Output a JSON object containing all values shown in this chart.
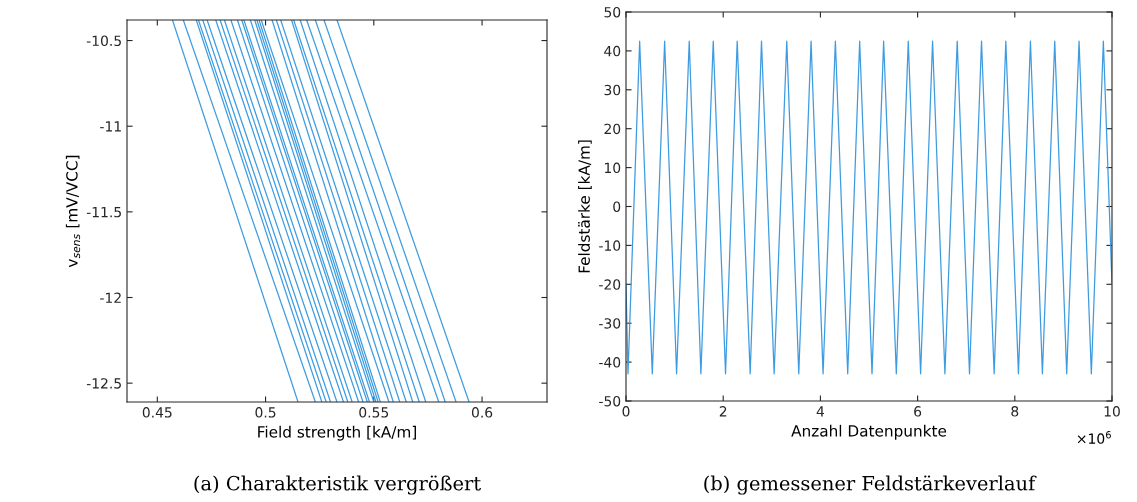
{
  "chart_data": [
    {
      "type": "line",
      "xlabel": "Field strength [kA/m]",
      "ylabel": "v$_{sens}$ [mV/VCC]",
      "annotations": [
        "(a) Charakteristik vergrößert"
      ],
      "xlim": [
        0.436,
        0.63
      ],
      "ylim": [
        -12.61,
        -10.38
      ],
      "xticks": [
        0.45,
        0.5,
        0.55,
        0.6
      ],
      "yticks": [
        -10.5,
        -11,
        -11.5,
        -12,
        -12.5
      ],
      "grid": false,
      "legend": false,
      "line_style": "solid",
      "marker": "none",
      "series": [
        {
          "color": "#3d9be0",
          "x": [
            0.457,
            0.515
          ],
          "values": [
            -10.38,
            -12.61
          ]
        },
        {
          "color": "#3d9be0",
          "x": [
            0.462,
            0.523
          ],
          "values": [
            -10.38,
            -12.61
          ]
        },
        {
          "color": "#3d9be0",
          "x": [
            0.468,
            0.526
          ],
          "values": [
            -10.38,
            -12.61
          ]
        },
        {
          "color": "#3d9be0",
          "x": [
            0.469,
            0.528
          ],
          "values": [
            -10.38,
            -12.61
          ]
        },
        {
          "color": "#3d9be0",
          "x": [
            0.471,
            0.53
          ],
          "values": [
            -10.38,
            -12.61
          ]
        },
        {
          "color": "#3d9be0",
          "x": [
            0.473,
            0.533
          ],
          "values": [
            -10.38,
            -12.61
          ]
        },
        {
          "color": "#3d9be0",
          "x": [
            0.477,
            0.536
          ],
          "values": [
            -10.38,
            -12.61
          ]
        },
        {
          "color": "#3d9be0",
          "x": [
            0.479,
            0.538
          ],
          "values": [
            -10.38,
            -12.61
          ]
        },
        {
          "color": "#3d9be0",
          "x": [
            0.481,
            0.54
          ],
          "values": [
            -10.38,
            -12.61
          ]
        },
        {
          "color": "#3d9be0",
          "x": [
            0.484,
            0.543
          ],
          "values": [
            -10.38,
            -12.61
          ]
        },
        {
          "color": "#3d9be0",
          "x": [
            0.487,
            0.545
          ],
          "values": [
            -10.38,
            -12.61
          ]
        },
        {
          "color": "#3d9be0",
          "x": [
            0.489,
            0.547
          ],
          "values": [
            -10.38,
            -12.61
          ]
        },
        {
          "color": "#3d9be0",
          "x": [
            0.49,
            0.548
          ],
          "values": [
            -10.38,
            -12.61
          ]
        },
        {
          "color": "#3d9be0",
          "x": [
            0.493,
            0.55
          ],
          "values": [
            -10.38,
            -12.61
          ]
        },
        {
          "color": "#3d9be0",
          "x": [
            0.495,
            0.551
          ],
          "values": [
            -10.38,
            -12.61
          ]
        },
        {
          "color": "#3d9be0",
          "x": [
            0.496,
            0.552
          ],
          "values": [
            -10.38,
            -12.61
          ]
        },
        {
          "color": "#3d9be0",
          "x": [
            0.497,
            0.553
          ],
          "values": [
            -10.38,
            -12.61
          ]
        },
        {
          "color": "#3d9be0",
          "x": [
            0.498,
            0.557
          ],
          "values": [
            -10.38,
            -12.61
          ]
        },
        {
          "color": "#3d9be0",
          "x": [
            0.503,
            0.559
          ],
          "values": [
            -10.38,
            -12.61
          ]
        },
        {
          "color": "#3d9be0",
          "x": [
            0.505,
            0.562
          ],
          "values": [
            -10.38,
            -12.61
          ]
        },
        {
          "color": "#3d9be0",
          "x": [
            0.507,
            0.565
          ],
          "values": [
            -10.38,
            -12.61
          ]
        },
        {
          "color": "#3d9be0",
          "x": [
            0.512,
            0.568
          ],
          "values": [
            -10.38,
            -12.61
          ]
        },
        {
          "color": "#3d9be0",
          "x": [
            0.513,
            0.571
          ],
          "values": [
            -10.38,
            -12.61
          ]
        },
        {
          "color": "#3d9be0",
          "x": [
            0.516,
            0.574
          ],
          "values": [
            -10.38,
            -12.61
          ]
        },
        {
          "color": "#3d9be0",
          "x": [
            0.519,
            0.58
          ],
          "values": [
            -10.38,
            -12.61
          ]
        },
        {
          "color": "#3d9be0",
          "x": [
            0.523,
            0.583
          ],
          "values": [
            -10.38,
            -12.61
          ]
        },
        {
          "color": "#3d9be0",
          "x": [
            0.527,
            0.588
          ],
          "values": [
            -10.38,
            -12.61
          ]
        },
        {
          "color": "#3d9be0",
          "x": [
            0.533,
            0.594
          ],
          "values": [
            -10.38,
            -12.61
          ]
        }
      ]
    },
    {
      "type": "line",
      "xlabel": "Anzahl Datenpunkte",
      "ylabel": "Feldstärke [kA/m]",
      "annotations": [
        "×10$^{6}$",
        "(b) gemessener Feldstärkeverlauf"
      ],
      "xlim": [
        0,
        10
      ],
      "ylim": [
        -50,
        50
      ],
      "xticks": [
        0,
        2,
        4,
        6,
        8,
        10
      ],
      "yticks": [
        -50,
        -40,
        -30,
        -20,
        -10,
        0,
        10,
        20,
        30,
        40,
        50
      ],
      "grid": false,
      "legend": false,
      "line_style": "solid",
      "marker": "none",
      "series": [
        {
          "color": "#3d9be0",
          "x": [
            0,
            0.041,
            0.281,
            0.541,
            0.795,
            1.041,
            1.301,
            1.541,
            1.795,
            2.048,
            2.288,
            2.555,
            2.788,
            3.048,
            3.308,
            3.555,
            3.808,
            4.055,
            4.308,
            4.562,
            4.808,
            5.062,
            5.301,
            5.562,
            5.808,
            6.062,
            6.308,
            6.562,
            6.815,
            7.068,
            7.315,
            7.575,
            7.815,
            8.075,
            8.322,
            8.568,
            8.822,
            9.068,
            9.322,
            9.575,
            9.822,
            10
          ],
          "values": [
            -20,
            -43,
            42.5,
            -43,
            42.5,
            -43,
            42.5,
            -43,
            42.5,
            -43,
            42.5,
            -43,
            42.5,
            -43,
            42.5,
            -43,
            42.5,
            -43,
            42.5,
            -43,
            42.5,
            -43,
            42.5,
            -43,
            42.5,
            -43,
            42.5,
            -43,
            42.5,
            -43,
            42.5,
            -43,
            42.5,
            -43,
            42.5,
            -43,
            42.5,
            -43,
            42.5,
            -43,
            42.5,
            -20
          ]
        }
      ]
    }
  ]
}
